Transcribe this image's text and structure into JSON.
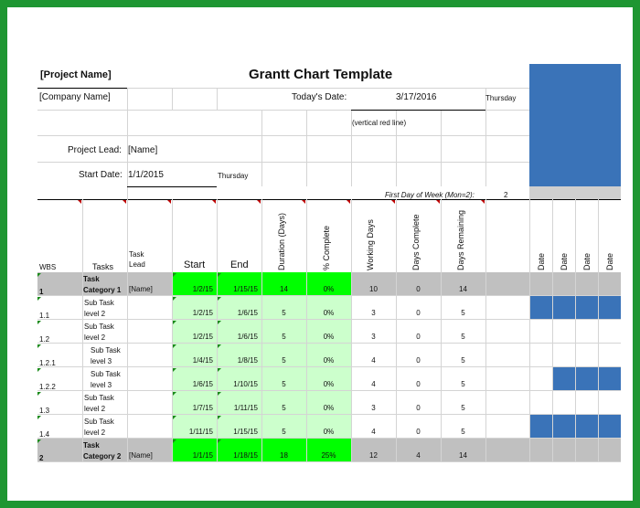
{
  "header": {
    "project_name": "[Project Name]",
    "title": "Grantt Chart Template",
    "company_name": "[Company Name]",
    "todays_date_label": "Today's Date:",
    "todays_date": "3/17/2016",
    "todays_day": "Thursday",
    "red_line_note": "(vertical red line)",
    "project_lead_label": "Project Lead:",
    "project_lead": "[Name]",
    "start_date_label": "Start Date:",
    "start_date": "1/1/2015",
    "start_day": "Thursday",
    "first_day_label": "First Day of Week (Mon=2):",
    "first_day_value": "2"
  },
  "columns": {
    "wbs": "WBS",
    "tasks": "Tasks",
    "task_lead_1": "Task",
    "task_lead_2": "Lead",
    "start": "Start",
    "end": "End",
    "duration": "Duration (Days)",
    "pct_complete": "% Complete",
    "working_days": "Working Days",
    "days_complete": "Days Complete",
    "days_remaining": "Days Remaining",
    "date_cols": [
      "Date",
      "Date",
      "Date",
      "Date"
    ]
  },
  "rows": [
    {
      "wbs": "1",
      "task1": "Task",
      "task2": "Category 1",
      "lead": "[Name]",
      "start": "1/2/15",
      "end": "1/15/15",
      "duration": "14",
      "pct": "0%",
      "working": "10",
      "done": "0",
      "remaining": "14",
      "category": true,
      "gantt": [
        0,
        0,
        0,
        0
      ]
    },
    {
      "wbs": "1.1",
      "task1": "Sub Task",
      "task2": "level 2",
      "lead": "",
      "start": "1/2/15",
      "end": "1/6/15",
      "duration": "5",
      "pct": "0%",
      "working": "3",
      "done": "0",
      "remaining": "5",
      "category": false,
      "gantt": [
        1,
        1,
        1,
        1
      ]
    },
    {
      "wbs": "1.2",
      "task1": "Sub Task",
      "task2": "level 2",
      "lead": "",
      "start": "1/2/15",
      "end": "1/6/15",
      "duration": "5",
      "pct": "0%",
      "working": "3",
      "done": "0",
      "remaining": "5",
      "category": false,
      "gantt": [
        0,
        0,
        0,
        0
      ]
    },
    {
      "wbs": "1.2.1",
      "task1": "Sub Task",
      "task2": "level 3",
      "lead": "",
      "start": "1/4/15",
      "end": "1/8/15",
      "duration": "5",
      "pct": "0%",
      "working": "4",
      "done": "0",
      "remaining": "5",
      "category": false,
      "gantt": [
        0,
        0,
        0,
        0
      ]
    },
    {
      "wbs": "1.2.2",
      "task1": "Sub Task",
      "task2": "level 3",
      "lead": "",
      "start": "1/6/15",
      "end": "1/10/15",
      "duration": "5",
      "pct": "0%",
      "working": "4",
      "done": "0",
      "remaining": "5",
      "category": false,
      "gantt": [
        0,
        1,
        1,
        1
      ]
    },
    {
      "wbs": "1.3",
      "task1": "Sub Task",
      "task2": "level 2",
      "lead": "",
      "start": "1/7/15",
      "end": "1/11/15",
      "duration": "5",
      "pct": "0%",
      "working": "3",
      "done": "0",
      "remaining": "5",
      "category": false,
      "gantt": [
        0,
        0,
        0,
        0
      ]
    },
    {
      "wbs": "1.4",
      "task1": "Sub Task",
      "task2": "level 2",
      "lead": "",
      "start": "1/11/15",
      "end": "1/15/15",
      "duration": "5",
      "pct": "0%",
      "working": "4",
      "done": "0",
      "remaining": "5",
      "category": false,
      "gantt": [
        1,
        1,
        1,
        1
      ]
    },
    {
      "wbs": "2",
      "task1": "Task",
      "task2": "Category 2",
      "lead": "[Name]",
      "start": "1/1/15",
      "end": "1/18/15",
      "duration": "18",
      "pct": "25%",
      "working": "12",
      "done": "4",
      "remaining": "14",
      "category": true,
      "gantt": [
        0,
        0,
        0,
        0
      ]
    }
  ],
  "colors": {
    "frame": "#1e9632",
    "category_row": "#c0c0c0",
    "bright_green": "#00ff00",
    "light_green": "#ccffcc",
    "gantt_blue": "#3a73b8",
    "grid": "#d4d4d4"
  }
}
